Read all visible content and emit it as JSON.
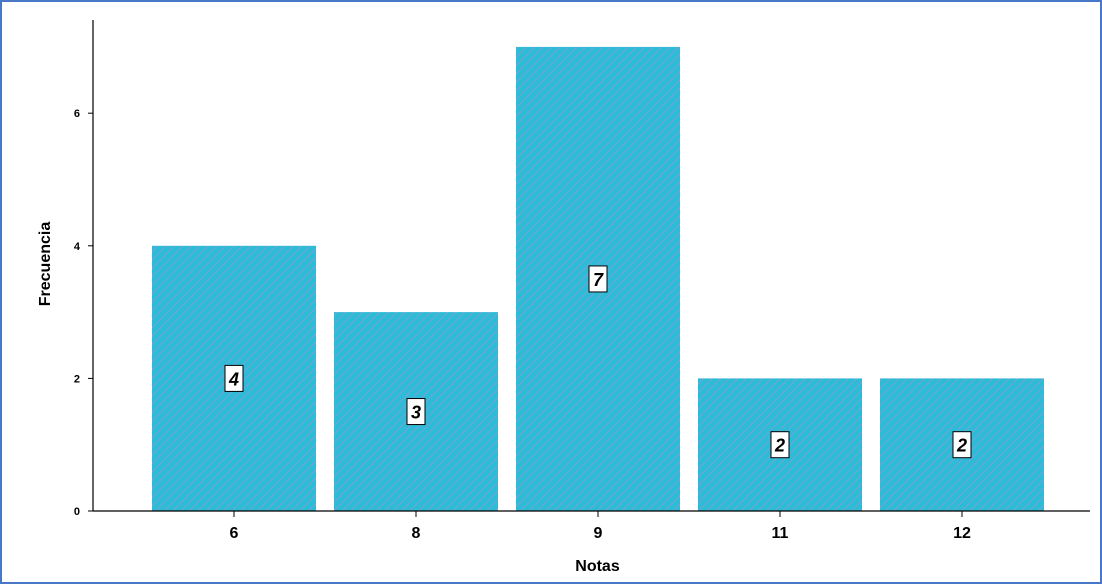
{
  "chart_data": {
    "type": "bar",
    "categories": [
      "6",
      "8",
      "9",
      "11",
      "12"
    ],
    "values": [
      4,
      3,
      7,
      2,
      2
    ],
    "data_labels": [
      "4",
      "3",
      "7",
      "2",
      "2"
    ],
    "title": "",
    "xlabel": "Notas",
    "ylabel": "Frecuencia",
    "ylim": [
      0,
      7.3
    ],
    "yticks": [
      0,
      2,
      4,
      6
    ],
    "ytick_labels": [
      "0",
      "2",
      "4",
      "6"
    ],
    "grid": false,
    "bar_fill": "hatched",
    "colors": {
      "bar": "#2bbcd6",
      "hatch": "#7b9fd6",
      "frame_border": "#4a78c8",
      "axis": "#000000"
    }
  }
}
